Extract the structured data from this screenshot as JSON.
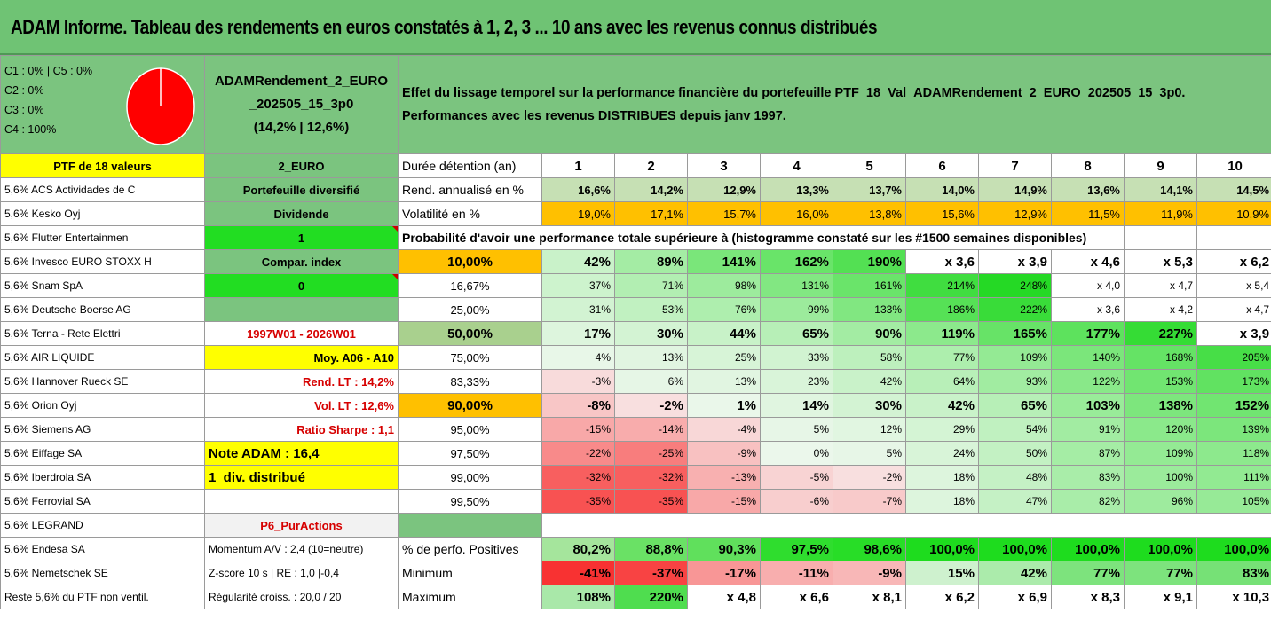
{
  "title": "ADAM Informe. Tableau des rendements en euros constatés à 1, 2, 3 ... 10 ans avec les revenus connus distribués",
  "composition": [
    "C1 : 0% | C5 : 0%",
    "C2 : 0%",
    "C3 : 0%",
    "C4 : 100%"
  ],
  "portfolio_name_line1": "ADAMRendement_2_EURO",
  "portfolio_name_line2": "_202505_15_3p0",
  "portfolio_name_line3": "(14,2% | 12,6%)",
  "header_text_line1": "Effet du lissage temporel sur la performance financière du portefeuille PTF_18_Val_ADAMRendement_2_EURO_202505_15_3p0.",
  "header_text_line2": "Performances avec les revenus DISTRIBUES depuis janv 1997.",
  "ptf_label": "PTF de 18 valeurs",
  "currency_label": "2_EURO",
  "duration_label": "Durée détention (an)",
  "years": [
    "1",
    "2",
    "3",
    "4",
    "5",
    "6",
    "7",
    "8",
    "9",
    "10"
  ],
  "stocks": [
    "5,6% ACS Actividades de C",
    "5,6% Kesko Oyj",
    "5,6% Flutter Entertainmen",
    "5,6% Invesco EURO STOXX H",
    "5,6% Snam SpA",
    "5,6% Deutsche Boerse AG",
    "5,6% Terna - Rete Elettri",
    "5,6% AIR LIQUIDE",
    "5,6% Hannover Rueck SE",
    "5,6% Orion Oyj",
    "5,6% Siemens AG",
    "5,6% Eiffage SA",
    "5,6% Iberdrola SA",
    "5,6% Ferrovial SA",
    "5,6% LEGRAND",
    "5,6% Endesa SA",
    "5,6% Nemetschek SE",
    "Reste 5,6% du PTF non ventil."
  ],
  "info": [
    "Portefeuille diversifié",
    "Dividende",
    "1",
    "Compar. index",
    "0",
    "",
    "1997W01 - 2026W01",
    "Moy. A06 - A10",
    "Rend. LT : 14,2%",
    "Vol. LT : 12,6%",
    "Ratio Sharpe : 1,1",
    "Note ADAM : 16,4",
    "1_div. distribué",
    "",
    "P6_PurActions",
    "Momentum A/V : 2,4 (10=neutre)",
    "Z-score 10 s | RE : 1,0 |-0,4",
    "Régularité croiss. : 20,0 / 20"
  ],
  "rend_label": "Rend. annualisé en %",
  "rend_values": [
    "16,6%",
    "14,2%",
    "12,9%",
    "13,3%",
    "13,7%",
    "14,0%",
    "14,9%",
    "13,6%",
    "14,1%",
    "14,5%"
  ],
  "vol_label": "Volatilité en %",
  "vol_values": [
    "19,0%",
    "17,1%",
    "15,7%",
    "16,0%",
    "13,8%",
    "15,6%",
    "12,9%",
    "11,5%",
    "11,9%",
    "10,9%"
  ],
  "prob_title": "Probabilité d'avoir une performance totale supérieure à (histogramme constaté sur les #1500 semaines disponibles)",
  "prob_rows": [
    {
      "p": "10,00%",
      "v": [
        "42%",
        "89%",
        "141%",
        "162%",
        "190%",
        "x 3,6",
        "x 3,9",
        "x 4,6",
        "x 5,3",
        "x 6,2"
      ]
    },
    {
      "p": "16,67%",
      "v": [
        "37%",
        "71%",
        "98%",
        "131%",
        "161%",
        "214%",
        "248%",
        "x 4,0",
        "x 4,7",
        "x 5,4"
      ]
    },
    {
      "p": "25,00%",
      "v": [
        "31%",
        "53%",
        "76%",
        "99%",
        "133%",
        "186%",
        "222%",
        "x 3,6",
        "x 4,2",
        "x 4,7"
      ]
    },
    {
      "p": "50,00%",
      "v": [
        "17%",
        "30%",
        "44%",
        "65%",
        "90%",
        "119%",
        "165%",
        "177%",
        "227%",
        "x 3,9"
      ]
    },
    {
      "p": "75,00%",
      "v": [
        "4%",
        "13%",
        "25%",
        "33%",
        "58%",
        "77%",
        "109%",
        "140%",
        "168%",
        "205%"
      ]
    },
    {
      "p": "83,33%",
      "v": [
        "-3%",
        "6%",
        "13%",
        "23%",
        "42%",
        "64%",
        "93%",
        "122%",
        "153%",
        "173%"
      ]
    },
    {
      "p": "90,00%",
      "v": [
        "-8%",
        "-2%",
        "1%",
        "14%",
        "30%",
        "42%",
        "65%",
        "103%",
        "138%",
        "152%"
      ]
    },
    {
      "p": "95,00%",
      "v": [
        "-15%",
        "-14%",
        "-4%",
        "5%",
        "12%",
        "29%",
        "54%",
        "91%",
        "120%",
        "139%"
      ]
    },
    {
      "p": "97,50%",
      "v": [
        "-22%",
        "-25%",
        "-9%",
        "0%",
        "5%",
        "24%",
        "50%",
        "87%",
        "109%",
        "118%"
      ]
    },
    {
      "p": "99,00%",
      "v": [
        "-32%",
        "-32%",
        "-13%",
        "-5%",
        "-2%",
        "18%",
        "48%",
        "83%",
        "100%",
        "111%"
      ]
    },
    {
      "p": "99,50%",
      "v": [
        "-35%",
        "-35%",
        "-15%",
        "-6%",
        "-7%",
        "18%",
        "47%",
        "82%",
        "96%",
        "105%"
      ]
    }
  ],
  "pos_label": "% de perfo. Positives",
  "pos_values": [
    "80,2%",
    "88,8%",
    "90,3%",
    "97,5%",
    "98,6%",
    "100,0%",
    "100,0%",
    "100,0%",
    "100,0%",
    "100,0%"
  ],
  "min_label": "Minimum",
  "min_values": [
    "-41%",
    "-37%",
    "-17%",
    "-11%",
    "-9%",
    "15%",
    "42%",
    "77%",
    "77%",
    "83%"
  ],
  "max_label": "Maximum",
  "max_values": [
    "108%",
    "220%",
    "x 4,8",
    "x 6,6",
    "x 8,1",
    "x 6,2",
    "x 6,9",
    "x 8,3",
    "x 9,1",
    "x 10,3"
  ],
  "colors": {
    "title_bg": "#6fc374",
    "panel_green": "#7bc47f",
    "bright_green": "#22dd22",
    "yellow": "#ffff00",
    "orange": "#ffc000",
    "red_text": "#d60000",
    "pie": "#ff0000"
  }
}
